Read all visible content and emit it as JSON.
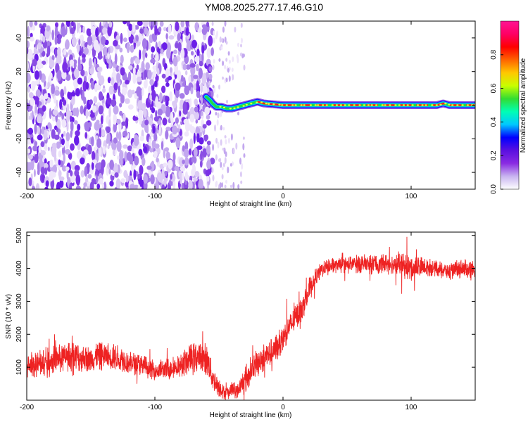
{
  "title": "YM08.2025.277.17.46.G10",
  "chart_data": [
    {
      "type": "heatmap",
      "xlabel": "Height of straight line (km)",
      "ylabel": "Frequency (Hz)",
      "xlim": [
        -200,
        150
      ],
      "ylim": [
        -50,
        50
      ],
      "xticks": [
        -200,
        -100,
        0,
        100
      ],
      "yticks": [
        -40,
        -20,
        0,
        20,
        40
      ],
      "grid": false,
      "noise_region_x": [
        -200,
        -55
      ],
      "sparse_region_x": [
        -55,
        -30
      ],
      "signal_track": {
        "x": [
          -60,
          -57,
          -55,
          -52,
          -48,
          -44,
          -40,
          -35,
          -30,
          -25,
          -20,
          -15,
          0,
          50,
          100,
          120,
          125,
          130,
          150
        ],
        "freq": [
          5,
          3,
          1,
          -1,
          -1,
          -2,
          -2,
          -1,
          0,
          1,
          2,
          1,
          0,
          0,
          0,
          0,
          1,
          0,
          0
        ]
      },
      "colorbar": {
        "label": "Normalized spectral amplitude",
        "range": [
          0,
          1
        ],
        "ticks": [
          "0.0",
          "0.2",
          "0.4",
          "0.6",
          "0.8"
        ],
        "colors": [
          "#ffffff",
          "#c8b4f0",
          "#8a2be2",
          "#5a10e0",
          "#0000ff",
          "#00c8ff",
          "#00ffb4",
          "#32dc32",
          "#c8ff00",
          "#ffc800",
          "#ff6400",
          "#ff0000",
          "#ff0064",
          "#ff1493"
        ]
      }
    },
    {
      "type": "line",
      "xlabel": "Height of straight line (km)",
      "ylabel": "SNR (10 * v/v)",
      "xlim": [
        -200,
        150
      ],
      "ylim": [
        0,
        5100
      ],
      "xticks": [
        -200,
        -100,
        0,
        100
      ],
      "yticks": [
        1000,
        2000,
        3000,
        4000,
        5000
      ],
      "grid": false,
      "series": [
        {
          "color": "#ee2222",
          "x": [
            -200,
            -190,
            -180,
            -170,
            -160,
            -150,
            -140,
            -130,
            -120,
            -110,
            -100,
            -90,
            -80,
            -75,
            -70,
            -65,
            -60,
            -55,
            -50,
            -45,
            -40,
            -35,
            -30,
            -25,
            -20,
            -15,
            -10,
            -5,
            0,
            5,
            10,
            15,
            20,
            25,
            30,
            40,
            50,
            60,
            70,
            80,
            90,
            100,
            110,
            120,
            130,
            140,
            150
          ],
          "center": [
            1000,
            1100,
            1200,
            1300,
            1300,
            1250,
            1350,
            1300,
            1150,
            1050,
            900,
            950,
            1050,
            1200,
            1250,
            1350,
            1250,
            700,
            400,
            200,
            300,
            300,
            600,
            900,
            1100,
            1300,
            1400,
            1600,
            1900,
            2200,
            2500,
            2800,
            3300,
            3700,
            3950,
            4100,
            4100,
            4150,
            4100,
            4150,
            4100,
            4000,
            4050,
            4000,
            3900,
            4000,
            3900
          ],
          "spread": [
            350,
            400,
            450,
            450,
            450,
            400,
            450,
            400,
            350,
            350,
            300,
            350,
            350,
            450,
            500,
            450,
            500,
            400,
            300,
            200,
            250,
            250,
            450,
            450,
            450,
            450,
            450,
            450,
            400,
            400,
            400,
            400,
            400,
            300,
            250,
            250,
            250,
            300,
            300,
            300,
            350,
            450,
            300,
            250,
            250,
            300,
            300
          ]
        }
      ]
    }
  ]
}
